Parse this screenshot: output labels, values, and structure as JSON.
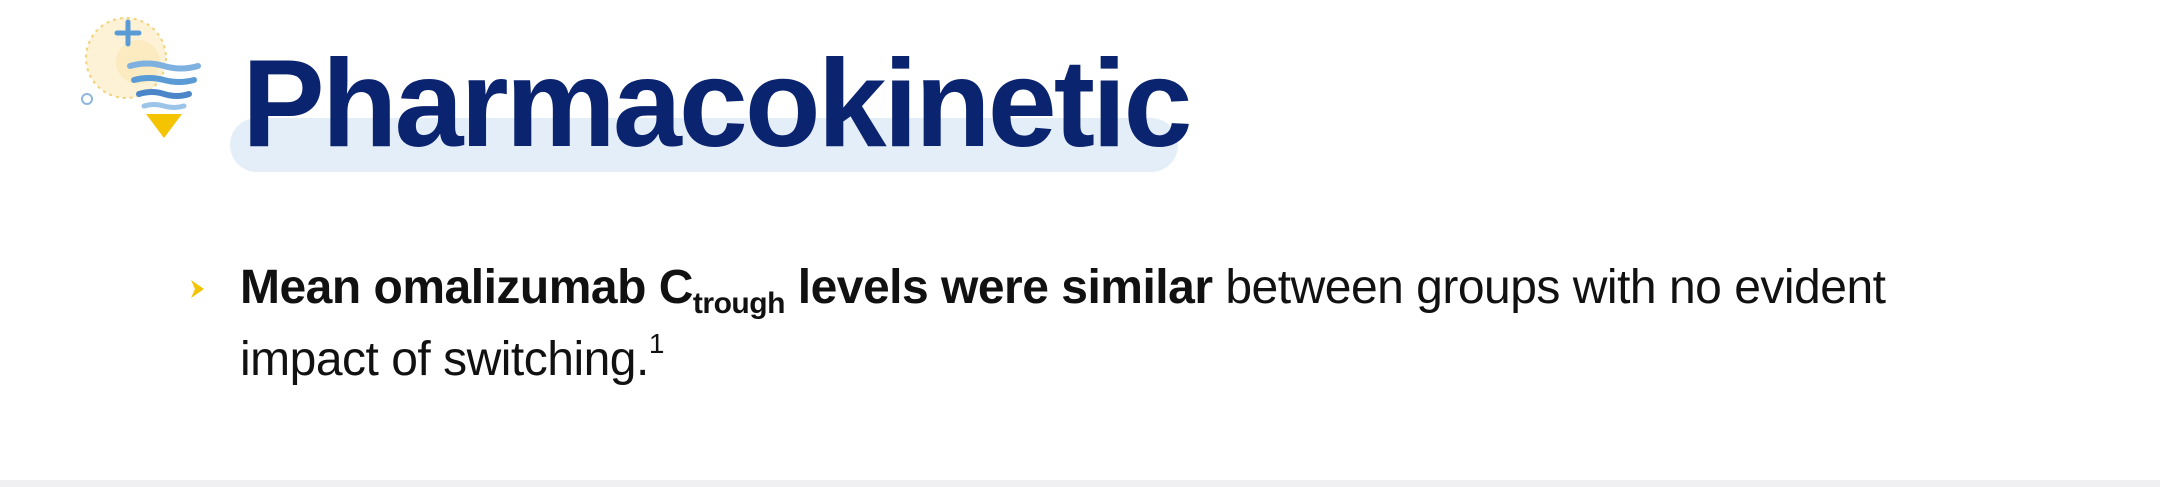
{
  "slide": {
    "title": "Pharmacokinetic",
    "bullet": {
      "bold_lead": "Mean omalizumab C",
      "bold_subscript": "trough",
      "bold_tail": " levels were similar",
      "regular_text": " between groups with no evident impact of switching.",
      "footnote_ref": "1"
    }
  },
  "colors": {
    "title": "#0b2470",
    "title_highlight": "#e3eef8",
    "bullet_arrow": "#f5c400",
    "body_text": "#111111",
    "logo_blue": "#5b9bd5",
    "logo_yellow": "#f5c400"
  },
  "icons": {
    "logo": "pharma-wave-cone-logo",
    "bullet": "chevron-right-icon"
  }
}
